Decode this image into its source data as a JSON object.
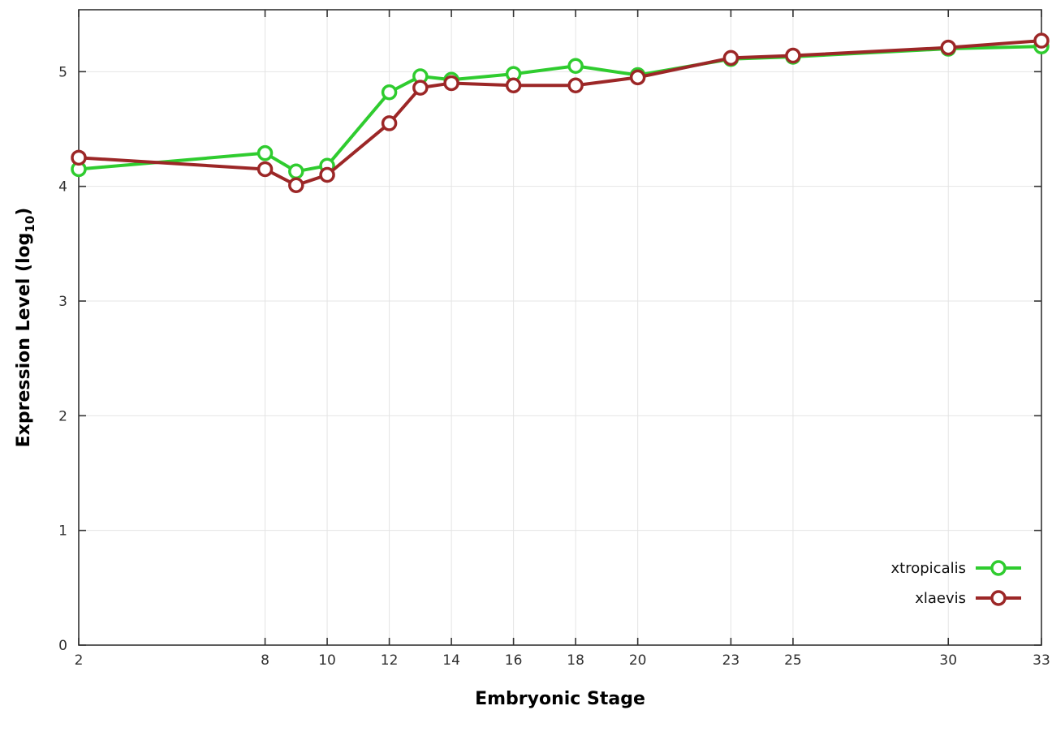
{
  "chart_data": {
    "type": "line",
    "title": "",
    "xlabel": "Embryonic Stage",
    "ylabel": "Expression Level (log10)",
    "ylabel_parts": {
      "prefix": "Expression Level (log",
      "sub": "10",
      "suffix": ")"
    },
    "x": [
      2,
      8,
      9,
      10,
      12,
      13,
      14,
      16,
      18,
      20,
      23,
      25,
      30,
      33
    ],
    "series": [
      {
        "name": "xtropicalis",
        "color": "#2fcc2f",
        "values": [
          4.15,
          4.29,
          4.13,
          4.18,
          4.82,
          4.96,
          4.93,
          4.98,
          5.05,
          4.97,
          5.11,
          5.13,
          5.2,
          5.22
        ]
      },
      {
        "name": "xlaevis",
        "color": "#9c2727",
        "values": [
          4.25,
          4.15,
          4.01,
          4.1,
          4.55,
          4.86,
          4.9,
          4.88,
          4.88,
          4.95,
          5.12,
          5.14,
          5.21,
          5.27
        ]
      }
    ],
    "xticks": [
      2,
      8,
      10,
      12,
      14,
      16,
      18,
      20,
      23,
      25,
      30,
      33
    ],
    "yticks": [
      0,
      1,
      2,
      3,
      4,
      5
    ],
    "xlim": [
      2,
      33
    ],
    "ylim": [
      0,
      5.54
    ],
    "grid": true,
    "grid_color": "#e4e4e4",
    "border_color": "#333333",
    "legend_position": "bottom-right",
    "legend": [
      "xtropicalis",
      "xlaevis"
    ]
  }
}
